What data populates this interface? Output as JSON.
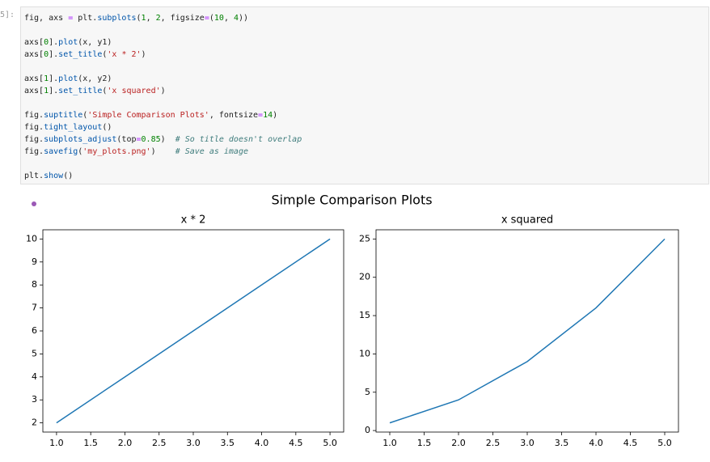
{
  "cell": {
    "prompt": "5]:",
    "code": [
      [
        "fig, axs = plt.subplots(1, 2, figsize=(10, 4))"
      ],
      [
        "axs[0].plot(x, y1)",
        "axs[0].set_title('x * 2')"
      ],
      [
        "axs[1].plot(x, y2)",
        "axs[1].set_title('x squared')"
      ],
      [
        "fig.suptitle('Simple Comparison Plots', fontsize=14)",
        "fig.tight_layout()",
        "fig.subplots_adjust(top=0.85)  # So title doesn't overlap",
        "fig.savefig('my_plots.png')    # Save as image"
      ],
      [
        "plt.show()"
      ]
    ]
  },
  "figure": {
    "suptitle": "Simple Comparison Plots"
  },
  "chart_data": [
    {
      "type": "line",
      "title": "x * 2",
      "x": [
        1,
        2,
        3,
        4,
        5
      ],
      "values": [
        2,
        4,
        6,
        8,
        10
      ],
      "color": "#1f77b4",
      "xlim": [
        0.8,
        5.2
      ],
      "ylim": [
        1.6,
        10.4
      ],
      "xticks": [
        {
          "value": 1,
          "label": "1.0"
        },
        {
          "value": 1.5,
          "label": "1.5"
        },
        {
          "value": 2,
          "label": "2.0"
        },
        {
          "value": 2.5,
          "label": "2.5"
        },
        {
          "value": 3,
          "label": "3.0"
        },
        {
          "value": 3.5,
          "label": "3.5"
        },
        {
          "value": 4,
          "label": "4.0"
        },
        {
          "value": 4.5,
          "label": "4.5"
        },
        {
          "value": 5,
          "label": "5.0"
        }
      ],
      "yticks": [
        2,
        3,
        4,
        5,
        6,
        7,
        8,
        9,
        10
      ],
      "grid": false
    },
    {
      "type": "line",
      "title": "x squared",
      "x": [
        1,
        2,
        3,
        4,
        5
      ],
      "values": [
        1,
        4,
        9,
        16,
        25
      ],
      "color": "#1f77b4",
      "xlim": [
        0.8,
        5.2
      ],
      "ylim": [
        -0.2,
        26.2
      ],
      "xticks": [
        {
          "value": 1,
          "label": "1.0"
        },
        {
          "value": 1.5,
          "label": "1.5"
        },
        {
          "value": 2,
          "label": "2.0"
        },
        {
          "value": 2.5,
          "label": "2.5"
        },
        {
          "value": 3,
          "label": "3.0"
        },
        {
          "value": 3.5,
          "label": "3.5"
        },
        {
          "value": 4,
          "label": "4.0"
        },
        {
          "value": 4.5,
          "label": "4.5"
        },
        {
          "value": 5,
          "label": "5.0"
        }
      ],
      "yticks": [
        0,
        5,
        10,
        15,
        20,
        25
      ],
      "grid": false
    }
  ]
}
